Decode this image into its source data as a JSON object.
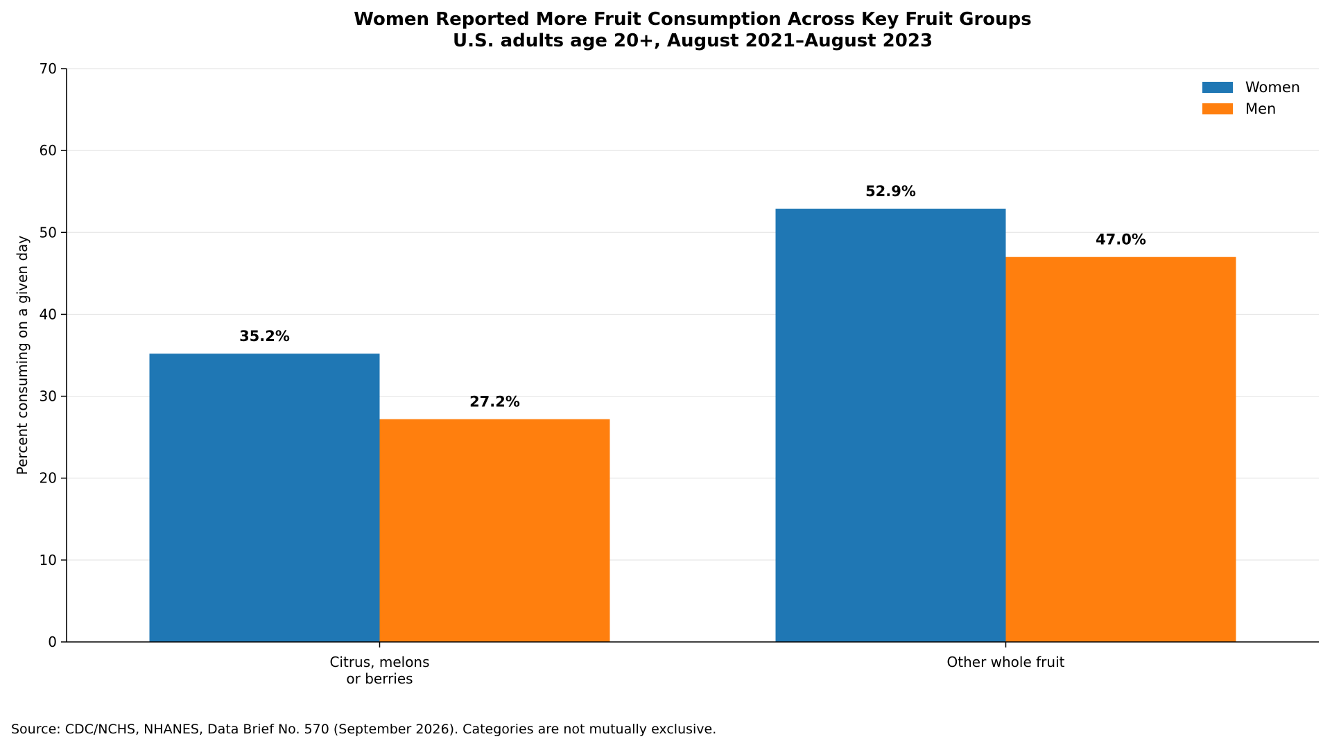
{
  "chart_data": {
    "type": "bar",
    "title_lines": [
      "Women Reported More Fruit Consumption Across Key Fruit Groups",
      "U.S. adults age 20+, August 2021–August 2023"
    ],
    "categories": [
      [
        "Citrus, melons",
        "or berries"
      ],
      [
        "Other whole fruit"
      ]
    ],
    "series": [
      {
        "name": "Women",
        "color": "#1f77b4",
        "values": [
          35.2,
          52.9
        ],
        "labels": [
          "35.2%",
          "52.9%"
        ]
      },
      {
        "name": "Men",
        "color": "#ff7f0e",
        "values": [
          27.2,
          47.0
        ],
        "labels": [
          "27.2%",
          "47.0%"
        ]
      }
    ],
    "xlabel": "",
    "ylabel": "Percent consuming on a given day",
    "ylim": [
      0,
      70
    ],
    "yticks": [
      0,
      10,
      20,
      30,
      40,
      50,
      60,
      70
    ],
    "grid": "horizontal",
    "legend_position": "top-right",
    "source_note": "Source: CDC/NCHS, NHANES, Data Brief No. 570 (September 2026). Categories are not mutually exclusive."
  }
}
